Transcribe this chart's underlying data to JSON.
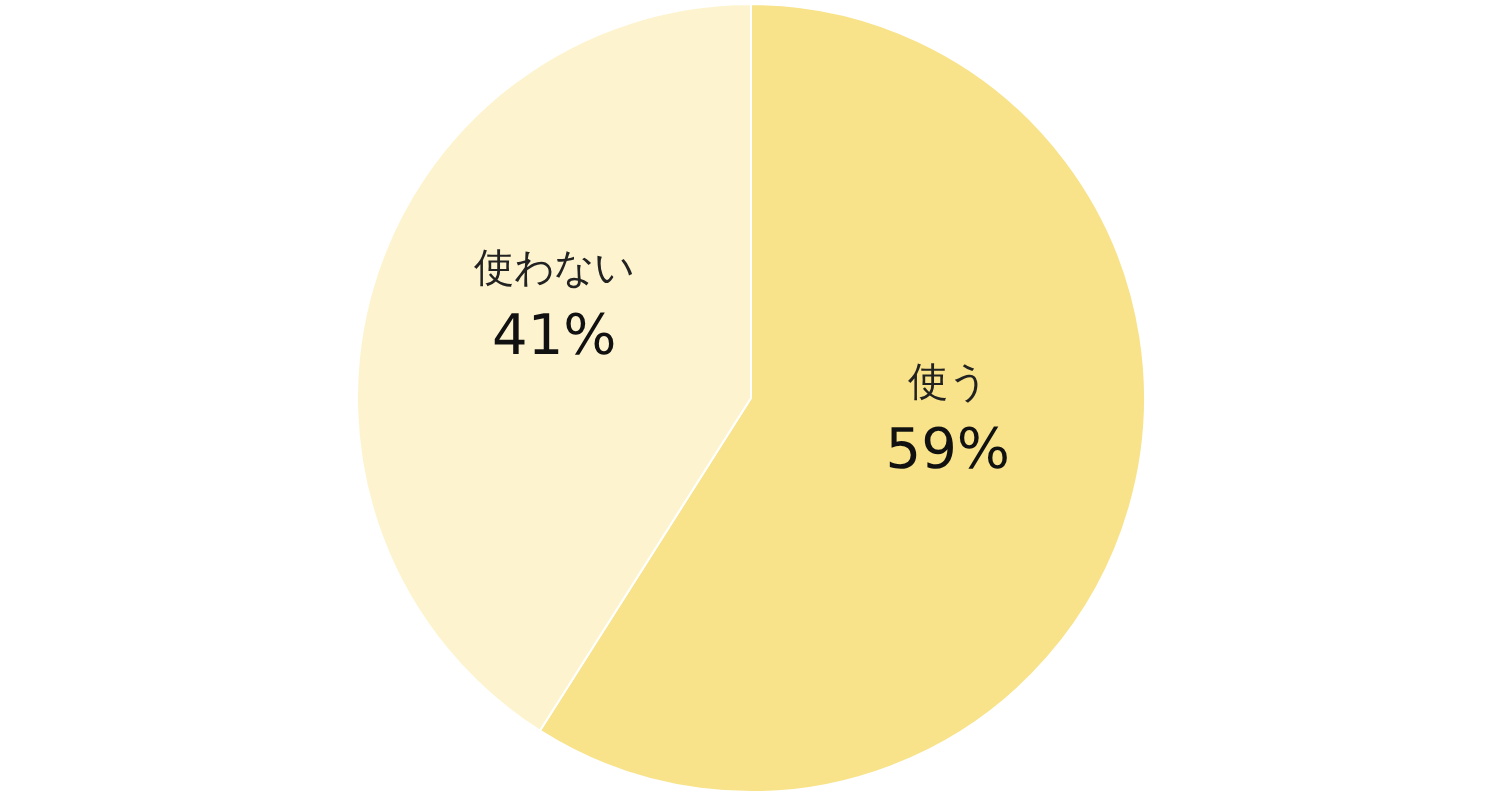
{
  "chart_data": {
    "type": "pie",
    "categories": [
      "使う",
      "使わない"
    ],
    "values": [
      59,
      41
    ],
    "colors": [
      "#f8e38a",
      "#fdf4cf"
    ],
    "value_labels": [
      "59%",
      "41%"
    ]
  }
}
